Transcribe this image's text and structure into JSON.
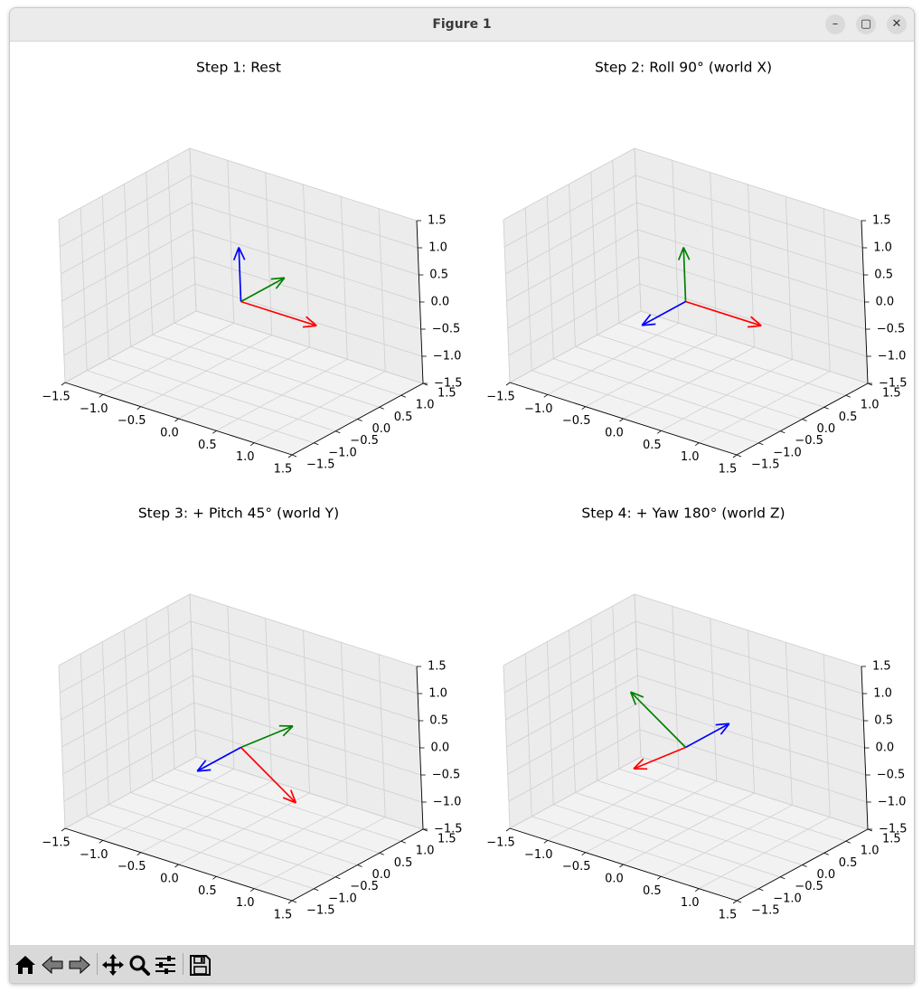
{
  "window": {
    "title": "Figure 1",
    "controls": [
      "–",
      "▢",
      "✕"
    ]
  },
  "toolbar": {
    "buttons": [
      {
        "name": "home-button",
        "icon": "home-icon"
      },
      {
        "name": "back-button",
        "icon": "arrow-left-icon"
      },
      {
        "name": "forward-button",
        "icon": "arrow-right-icon"
      },
      {
        "name": "pan-button",
        "icon": "move-icon"
      },
      {
        "name": "zoom-button",
        "icon": "magnifier-icon"
      },
      {
        "name": "configure-subplots-button",
        "icon": "sliders-icon"
      },
      {
        "name": "save-button",
        "icon": "floppy-disk-icon"
      }
    ]
  },
  "chart_data": [
    {
      "type": "3d-quiver",
      "title": "Step 1: Rest",
      "xlim": [
        -1.5,
        1.5
      ],
      "ylim": [
        -1.5,
        1.5
      ],
      "zlim": [
        -1.5,
        1.5
      ],
      "x_ticks": [
        "−1.5",
        "−1.0",
        "−0.5",
        "0.0",
        "0.5",
        "1.0",
        "1.5"
      ],
      "y_ticks": [
        "−1.5",
        "−1.0",
        "−0.5",
        "0.0",
        "0.5",
        "1.0",
        "1.5"
      ],
      "z_ticks": [
        "−1.5",
        "−1.0",
        "−0.5",
        "0.0",
        "0.5",
        "1.0",
        "1.5"
      ],
      "grid": true,
      "origin": [
        0,
        0,
        0
      ],
      "vectors": [
        {
          "color": "#ff0000",
          "v": [
            1,
            0,
            0
          ]
        },
        {
          "color": "#008000",
          "v": [
            0,
            1,
            0
          ]
        },
        {
          "color": "#0000ff",
          "v": [
            0,
            0,
            1
          ]
        }
      ]
    },
    {
      "type": "3d-quiver",
      "title": "Step 2: Roll 90° (world X)",
      "xlim": [
        -1.5,
        1.5
      ],
      "ylim": [
        -1.5,
        1.5
      ],
      "zlim": [
        -1.5,
        1.5
      ],
      "x_ticks": [
        "−1.5",
        "−1.0",
        "−0.5",
        "0.0",
        "0.5",
        "1.0",
        "1.5"
      ],
      "y_ticks": [
        "−1.5",
        "−1.0",
        "−0.5",
        "0.0",
        "0.5",
        "1.0",
        "1.5"
      ],
      "z_ticks": [
        "−1.5",
        "−1.0",
        "−0.5",
        "0.0",
        "0.5",
        "1.0",
        "1.5"
      ],
      "grid": true,
      "origin": [
        0,
        0,
        0
      ],
      "vectors": [
        {
          "color": "#ff0000",
          "v": [
            1,
            0,
            0
          ]
        },
        {
          "color": "#008000",
          "v": [
            0,
            0,
            1
          ]
        },
        {
          "color": "#0000ff",
          "v": [
            0,
            -1,
            0
          ]
        }
      ]
    },
    {
      "type": "3d-quiver",
      "title": "Step 3: + Pitch 45° (world Y)",
      "xlim": [
        -1.5,
        1.5
      ],
      "ylim": [
        -1.5,
        1.5
      ],
      "zlim": [
        -1.5,
        1.5
      ],
      "x_ticks": [
        "−1.5",
        "−1.0",
        "−0.5",
        "0.0",
        "0.5",
        "1.0",
        "1.5"
      ],
      "y_ticks": [
        "−1.5",
        "−1.0",
        "−0.5",
        "0.0",
        "0.5",
        "1.0",
        "1.5"
      ],
      "z_ticks": [
        "−1.5",
        "−1.0",
        "−0.5",
        "0.0",
        "0.5",
        "1.0",
        "1.5"
      ],
      "grid": true,
      "origin": [
        0,
        0,
        0
      ],
      "vectors": [
        {
          "color": "#ff0000",
          "v": [
            0.707,
            0,
            -0.707
          ]
        },
        {
          "color": "#008000",
          "v": [
            0.707,
            0,
            0.707
          ]
        },
        {
          "color": "#0000ff",
          "v": [
            0,
            -1,
            0
          ]
        }
      ]
    },
    {
      "type": "3d-quiver",
      "title": "Step 4: + Yaw 180° (world Z)",
      "xlim": [
        -1.5,
        1.5
      ],
      "ylim": [
        -1.5,
        1.5
      ],
      "zlim": [
        -1.5,
        1.5
      ],
      "x_ticks": [
        "−1.5",
        "−1.0",
        "−0.5",
        "0.0",
        "0.5",
        "1.0",
        "1.5"
      ],
      "y_ticks": [
        "−1.5",
        "−1.0",
        "−0.5",
        "0.0",
        "0.5",
        "1.0",
        "1.5"
      ],
      "z_ticks": [
        "−1.5",
        "−1.0",
        "−0.5",
        "0.0",
        "0.5",
        "1.0",
        "1.5"
      ],
      "grid": true,
      "origin": [
        0,
        0,
        0
      ],
      "vectors": [
        {
          "color": "#ff0000",
          "v": [
            -0.707,
            0,
            -0.707
          ]
        },
        {
          "color": "#008000",
          "v": [
            -0.707,
            0,
            0.707
          ]
        },
        {
          "color": "#0000ff",
          "v": [
            0,
            1,
            0
          ]
        }
      ]
    }
  ]
}
